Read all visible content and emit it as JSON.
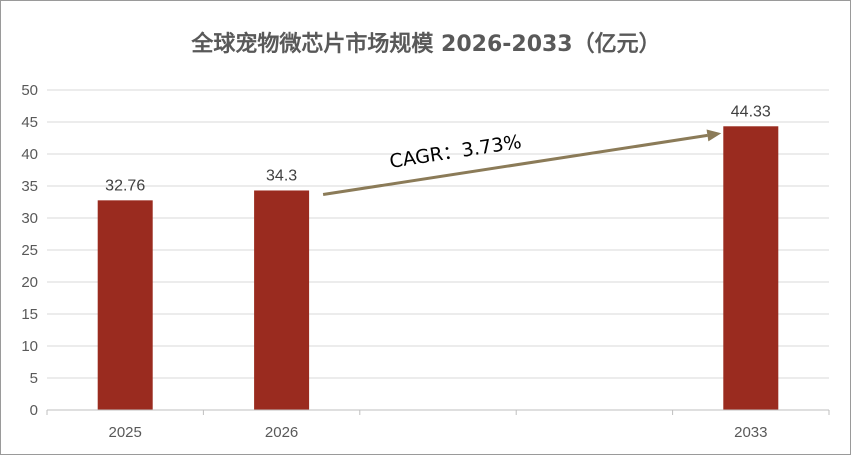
{
  "chart_data": {
    "type": "bar",
    "title": "全球宠物微芯片市场规模 2026-2033（亿元）",
    "categories": [
      "2025",
      "2026",
      "",
      "",
      "2033"
    ],
    "values": [
      32.76,
      34.3,
      null,
      null,
      44.33
    ],
    "data_labels": [
      "32.76",
      "34.3",
      "",
      "",
      "44.33"
    ],
    "y_ticks": [
      "0",
      "5",
      "10",
      "15",
      "20",
      "25",
      "30",
      "35",
      "40",
      "45",
      "50"
    ],
    "ylim": [
      0,
      50
    ],
    "y_step": 5,
    "xlabel": "",
    "ylabel": "",
    "grid": true,
    "legend": "none",
    "bar_color": "#9A2B1F",
    "annotation": {
      "text": "CAGR：3.73%",
      "from_category": "2026",
      "to_category": "2033",
      "arrow_color": "#8B7B58"
    }
  }
}
